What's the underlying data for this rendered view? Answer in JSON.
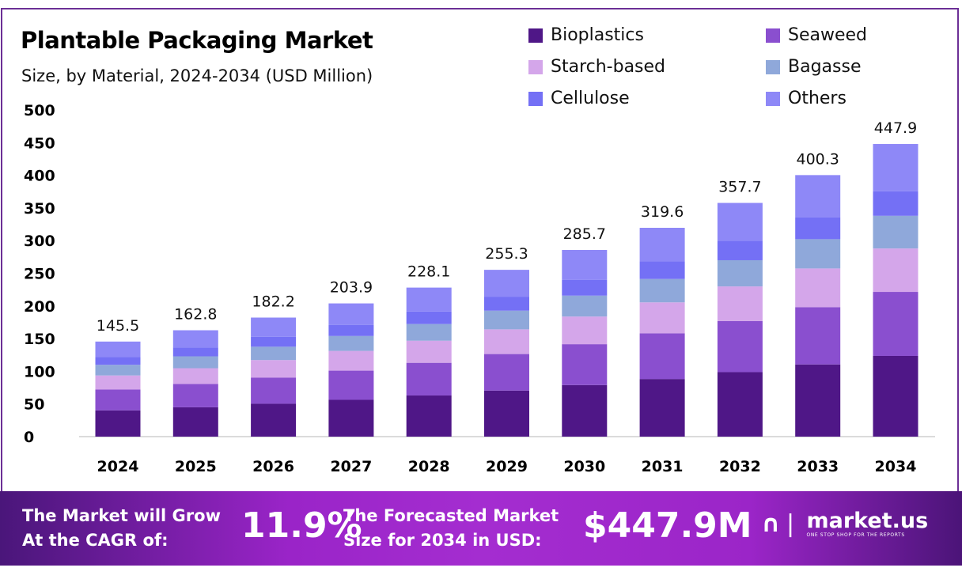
{
  "chart_data": {
    "type": "bar",
    "stacked": true,
    "title": "Plantable Packaging Market",
    "subtitle": "Size, by Material, 2024-2034 (USD Million)",
    "xlabel": "",
    "ylabel": "",
    "ylim": [
      0,
      500
    ],
    "yticks": [
      0,
      50,
      100,
      150,
      200,
      250,
      300,
      350,
      400,
      450,
      500
    ],
    "grid": false,
    "legend_position": "top-right",
    "categories": [
      "2024",
      "2025",
      "2026",
      "2027",
      "2028",
      "2029",
      "2030",
      "2031",
      "2032",
      "2033",
      "2034"
    ],
    "totals": [
      "145.5",
      "162.8",
      "182.2",
      "203.9",
      "228.1",
      "255.3",
      "285.7",
      "319.6",
      "357.7",
      "400.3",
      "447.9"
    ],
    "series": [
      {
        "name": "Bioplastics",
        "color": "#4f1787",
        "values": [
          40.2,
          44.9,
          50.3,
          56.3,
          63.0,
          70.5,
          78.9,
          88.2,
          98.7,
          110.5,
          123.5
        ]
      },
      {
        "name": "Seaweed",
        "color": "#8a4fcf",
        "values": [
          31.9,
          35.7,
          39.9,
          44.7,
          50.0,
          55.9,
          62.6,
          70.0,
          78.3,
          87.7,
          98.0
        ]
      },
      {
        "name": "Starch-based",
        "color": "#d4a6ea",
        "values": [
          21.5,
          24.1,
          27.0,
          30.2,
          33.8,
          37.8,
          42.3,
          47.3,
          52.9,
          59.2,
          66.5
        ]
      },
      {
        "name": "Bagasse",
        "color": "#8fa8da",
        "values": [
          16.3,
          18.2,
          20.4,
          22.8,
          25.5,
          28.6,
          32.0,
          35.8,
          40.1,
          44.8,
          50.0
        ]
      },
      {
        "name": "Cellulose",
        "color": "#7470f5",
        "values": [
          12.2,
          13.7,
          15.3,
          17.1,
          19.2,
          21.4,
          24.0,
          26.8,
          30.0,
          33.6,
          37.6
        ]
      },
      {
        "name": "Others",
        "color": "#8e88f7",
        "values": [
          23.4,
          26.2,
          29.3,
          32.8,
          36.6,
          41.1,
          45.9,
          51.5,
          57.7,
          64.5,
          72.3
        ]
      }
    ]
  },
  "footer": {
    "cagr_label_1": "The Market will Grow",
    "cagr_label_2": "At the CAGR of:",
    "cagr_value": "11.9%",
    "forecast_label_1": "The Forecasted Market",
    "forecast_label_2": "Size for 2034 in USD:",
    "forecast_value": "$447.9M",
    "brand_name": "market.us",
    "brand_tagline": "ONE STOP SHOP FOR THE REPORTS"
  }
}
